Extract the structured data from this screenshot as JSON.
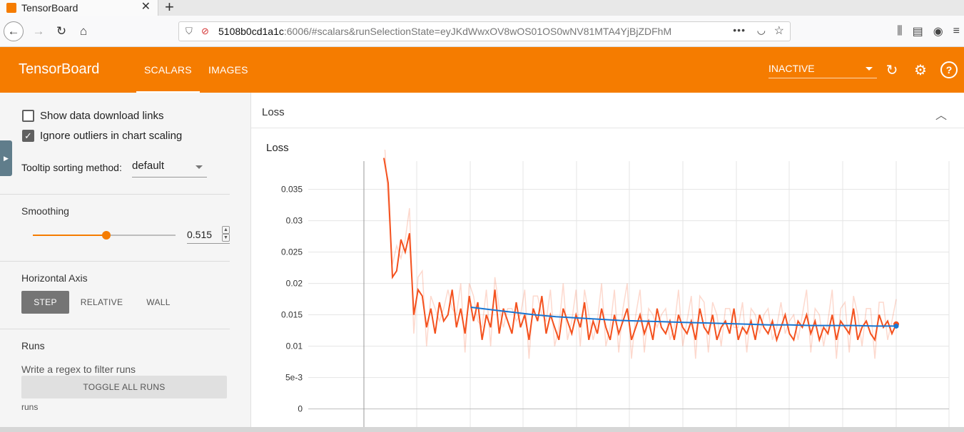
{
  "browser": {
    "tab_title": "TensorBoard",
    "url_host": "5108b0cd1a1c",
    "url_rest": ":6006/#scalars&runSelectionState=eyJKdWwxOV8wOS01OS0wNV81MTA4YjBjZDFhM"
  },
  "header": {
    "brand": "TensorBoard",
    "tabs": [
      {
        "label": "SCALARS"
      },
      {
        "label": "IMAGES"
      }
    ],
    "status": "INACTIVE",
    "accent": "#f57c00"
  },
  "sidebar": {
    "show_download_label": "Show data download links",
    "ignore_outliers_label": "Ignore outliers in chart scaling",
    "show_download_checked": false,
    "ignore_outliers_checked": true,
    "tooltip_label": "Tooltip sorting method:",
    "tooltip_value": "default",
    "smoothing_title": "Smoothing",
    "smoothing_value": "0.515",
    "smoothing_fraction": 0.515,
    "haxis_title": "Horizontal Axis",
    "haxis_options": [
      {
        "label": "STEP"
      },
      {
        "label": "RELATIVE"
      },
      {
        "label": "WALL"
      }
    ],
    "runs_title": "Runs",
    "runs_filter_placeholder": "Write a regex to filter runs",
    "toggle_all": "TOGGLE ALL RUNS",
    "run_name": "runs"
  },
  "main": {
    "card_title": "Loss",
    "chart_title": "Loss"
  },
  "chart_data": {
    "type": "line",
    "title": "Loss",
    "xlabel": "",
    "ylabel": "",
    "ylim": [
      -0.003,
      0.0395
    ],
    "yticks": [
      "0.035",
      "0.03",
      "0.025",
      "0.02",
      "0.015",
      "0.01",
      "5e-3",
      "0"
    ],
    "ytick_values": [
      0.035,
      0.03,
      0.025,
      0.02,
      0.015,
      0.01,
      0.005,
      0
    ],
    "grid": true,
    "series": [
      {
        "color": "#f4511e",
        "values": [
          0.04,
          0.036,
          0.021,
          0.022,
          0.027,
          0.025,
          0.028,
          0.015,
          0.019,
          0.018,
          0.013,
          0.016,
          0.012,
          0.017,
          0.014,
          0.015,
          0.019,
          0.013,
          0.016,
          0.012,
          0.018,
          0.014,
          0.017,
          0.011,
          0.015,
          0.013,
          0.019,
          0.012,
          0.016,
          0.014,
          0.012,
          0.017,
          0.013,
          0.015,
          0.011,
          0.016,
          0.014,
          0.018,
          0.012,
          0.015,
          0.013,
          0.011,
          0.016,
          0.014,
          0.012,
          0.015,
          0.013,
          0.017,
          0.011,
          0.014,
          0.012,
          0.016,
          0.013,
          0.011,
          0.015,
          0.012,
          0.014,
          0.016,
          0.011,
          0.013,
          0.015,
          0.012,
          0.014,
          0.011,
          0.016,
          0.013,
          0.012,
          0.014,
          0.011,
          0.015,
          0.013,
          0.012,
          0.014,
          0.011,
          0.016,
          0.013,
          0.012,
          0.015,
          0.011,
          0.013,
          0.014,
          0.012,
          0.016,
          0.011,
          0.013,
          0.012,
          0.014,
          0.011,
          0.015,
          0.013,
          0.012,
          0.014,
          0.011,
          0.013,
          0.015,
          0.012,
          0.011,
          0.014,
          0.013,
          0.015,
          0.012,
          0.014,
          0.011,
          0.013,
          0.012,
          0.015,
          0.011,
          0.014,
          0.013,
          0.012,
          0.016,
          0.011,
          0.013,
          0.014,
          0.012,
          0.011,
          0.015,
          0.013,
          0.014,
          0.012,
          0.0135
        ]
      },
      {
        "color": "#1976d2",
        "values": [
          0.0162,
          0.0158,
          0.0154,
          0.015,
          0.0147,
          0.0145,
          0.0143,
          0.0141,
          0.014,
          0.0139,
          0.0138,
          0.0137,
          0.0136,
          0.0135,
          0.0134,
          0.0134,
          0.0133,
          0.0133,
          0.0133,
          0.0132,
          0.0132
        ]
      }
    ]
  }
}
